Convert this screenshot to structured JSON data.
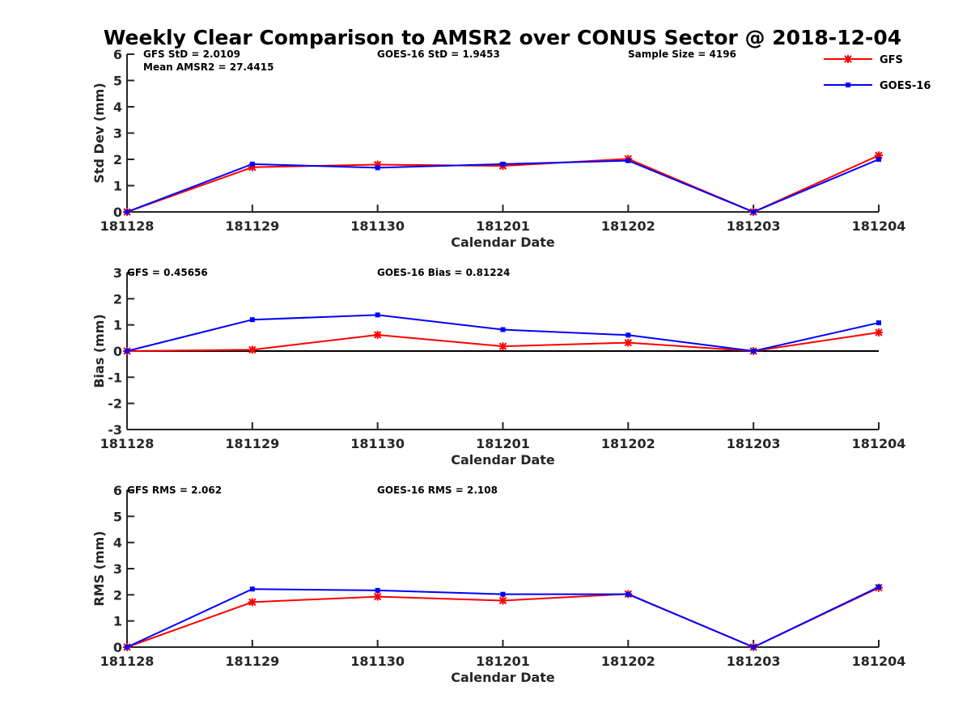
{
  "title": "Weekly Clear Comparison to AMSR2 over CONUS Sector @ 2018-12-04",
  "colors": {
    "GFS": "#ff0000",
    "GOES-16": "#0000ff",
    "axis": "#262626"
  },
  "legend": {
    "position": "top-right",
    "entries": [
      {
        "name": "GFS",
        "marker": "asterisk",
        "color": "#ff0000"
      },
      {
        "name": "GOES-16",
        "marker": "square",
        "color": "#0000ff"
      }
    ]
  },
  "chart_data": [
    {
      "type": "line",
      "categories": [
        "181128",
        "181129",
        "181130",
        "181201",
        "181202",
        "181203",
        "181204"
      ],
      "xlabel": "Calendar Date",
      "ylabel": "Std Dev (mm)",
      "ylim": [
        0,
        6
      ],
      "yticks": [
        0,
        1,
        2,
        3,
        4,
        5,
        6
      ],
      "zero_line": false,
      "annotations": {
        "left": [
          "GFS StD = 2.0109",
          "Mean AMSR2 = 27.4415"
        ],
        "middle": [
          "GOES-16 StD = 1.9453"
        ],
        "right": [
          "Sample Size = 4196"
        ]
      },
      "series": [
        {
          "name": "GFS",
          "values": [
            0.0,
            1.7,
            1.8,
            1.75,
            2.02,
            0.0,
            2.15
          ]
        },
        {
          "name": "GOES-16",
          "values": [
            0.0,
            1.82,
            1.68,
            1.82,
            1.95,
            0.0,
            2.0
          ]
        }
      ]
    },
    {
      "type": "line",
      "categories": [
        "181128",
        "181129",
        "181130",
        "181201",
        "181202",
        "181203",
        "181204"
      ],
      "xlabel": "Calendar Date",
      "ylabel": "Bias (mm)",
      "ylim": [
        -3,
        3
      ],
      "yticks": [
        -3,
        -2,
        -1,
        0,
        1,
        2,
        3
      ],
      "zero_line": true,
      "annotations": {
        "left": [
          "GFS = 0.45656"
        ],
        "middle": [
          "GOES-16 Bias  = 0.81224"
        ],
        "right": []
      },
      "series": [
        {
          "name": "GFS",
          "values": [
            0.0,
            0.05,
            0.62,
            0.18,
            0.32,
            0.0,
            0.71
          ]
        },
        {
          "name": "GOES-16",
          "values": [
            0.0,
            1.2,
            1.38,
            0.82,
            0.61,
            0.0,
            1.08
          ]
        }
      ]
    },
    {
      "type": "line",
      "categories": [
        "181128",
        "181129",
        "181130",
        "181201",
        "181202",
        "181203",
        "181204"
      ],
      "xlabel": "Calendar Date",
      "ylabel": "RMS (mm)",
      "ylim": [
        0,
        6
      ],
      "yticks": [
        0,
        1,
        2,
        3,
        4,
        5,
        6
      ],
      "zero_line": false,
      "annotations": {
        "left": [
          "GFS RMS = 2.062"
        ],
        "middle": [
          "GOES-16 RMS = 2.108"
        ],
        "right": []
      },
      "series": [
        {
          "name": "GFS",
          "values": [
            0.0,
            1.72,
            1.93,
            1.78,
            2.03,
            0.0,
            2.27
          ]
        },
        {
          "name": "GOES-16",
          "values": [
            0.0,
            2.22,
            2.17,
            2.02,
            2.02,
            0.0,
            2.3
          ]
        }
      ]
    }
  ]
}
